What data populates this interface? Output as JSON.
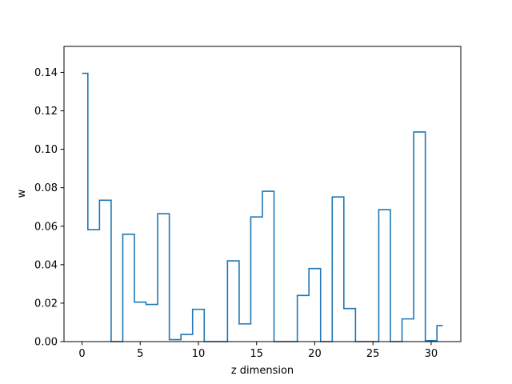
{
  "chart_data": {
    "type": "line",
    "drawstyle": "steps-mid",
    "xlabel": "z dimension",
    "ylabel": "w",
    "xlim": [
      -1.55,
      32.55
    ],
    "ylim": [
      0.0,
      0.1535
    ],
    "xticks": [
      0,
      5,
      10,
      15,
      20,
      25,
      30
    ],
    "xtick_labels": [
      "0",
      "5",
      "10",
      "15",
      "20",
      "25",
      "30"
    ],
    "yticks": [
      0.0,
      0.02,
      0.04,
      0.06,
      0.08,
      0.1,
      0.12,
      0.14
    ],
    "ytick_labels": [
      "0.00",
      "0.02",
      "0.04",
      "0.06",
      "0.08",
      "0.10",
      "0.12",
      "0.14"
    ],
    "grid": false,
    "series": [
      {
        "color": "#1f77b4",
        "x": [
          0,
          1,
          2,
          3,
          4,
          5,
          6,
          7,
          8,
          9,
          10,
          11,
          12,
          13,
          14,
          15,
          16,
          17,
          18,
          19,
          20,
          21,
          22,
          23,
          24,
          25,
          26,
          27,
          28,
          29,
          30,
          31
        ],
        "values": [
          0.1395,
          0.0582,
          0.0735,
          0.0,
          0.0558,
          0.0205,
          0.0193,
          0.0665,
          0.001,
          0.0037,
          0.0168,
          0.0,
          0.0,
          0.042,
          0.0092,
          0.0648,
          0.0782,
          0.0,
          0.0,
          0.024,
          0.038,
          0.0,
          0.0752,
          0.0172,
          0.0,
          0.0,
          0.0686,
          0.0,
          0.0118,
          0.109,
          0.0005,
          0.0083
        ]
      }
    ]
  }
}
